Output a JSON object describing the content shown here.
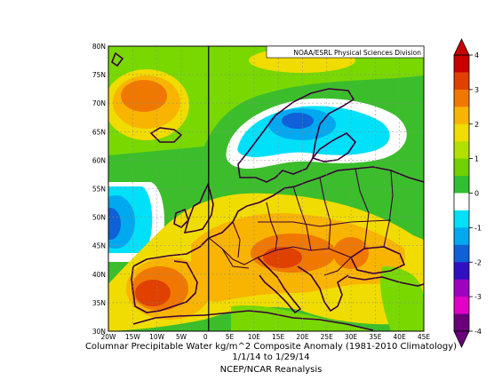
{
  "map": {
    "credit": "NOAA/ESRL Physical Sciences Division",
    "lat_labels": [
      "80N",
      "75N",
      "70N",
      "65N",
      "60N",
      "55N",
      "50N",
      "45N",
      "40N",
      "35N",
      "30N"
    ],
    "lon_labels": [
      "20W",
      "15W",
      "10W",
      "5W",
      "0",
      "5E",
      "10E",
      "15E",
      "20E",
      "25E",
      "30E",
      "35E",
      "40E",
      "45E"
    ],
    "lat_range": [
      30,
      80
    ],
    "lon_range": [
      -20,
      45
    ],
    "grid": "dotted"
  },
  "colorbar": {
    "labels": [
      "4",
      "3",
      "2",
      "1",
      "0",
      "-1",
      "-2",
      "-3",
      "-4"
    ],
    "colors": [
      "#c80000",
      "#e04000",
      "#f07800",
      "#f8b400",
      "#f0dc00",
      "#b4e000",
      "#70d000",
      "#30c030",
      "#ffffff",
      "#00e0f8",
      "#00a8f0",
      "#1060d8",
      "#3010c0",
      "#a000c0",
      "#e000c8",
      "#6a007a"
    ]
  },
  "caption": {
    "line1": "Columnar Precipitable Water kg/m^2 Composite Anomaly (1981-2010 Climatology)",
    "line2": "1/1/14  to 1/29/14",
    "line3": "NCEP/NCAR Reanalysis"
  }
}
